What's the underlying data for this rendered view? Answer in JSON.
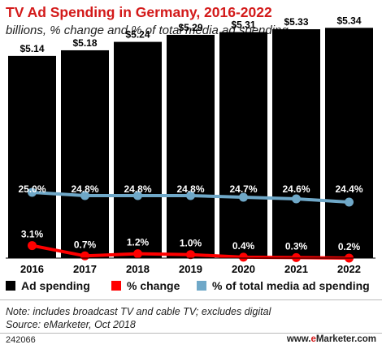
{
  "chart_data": {
    "type": "bar",
    "title": "TV Ad Spending in Germany, 2016-2022",
    "subtitle": "billions, % change and % of total media ad spending",
    "categories": [
      "2016",
      "2017",
      "2018",
      "2019",
      "2020",
      "2021",
      "2022"
    ],
    "series": [
      {
        "name": "Ad spending",
        "type": "bar",
        "color": "#000000",
        "values": [
          5.14,
          5.18,
          5.24,
          5.29,
          5.31,
          5.33,
          5.34
        ],
        "labels": [
          "$5.14",
          "$5.18",
          "$5.24",
          "$5.29",
          "$5.31",
          "$5.33",
          "$5.34"
        ]
      },
      {
        "name": "% change",
        "type": "line",
        "color": "#ff0000",
        "values": [
          3.1,
          0.7,
          1.2,
          1.0,
          0.4,
          0.3,
          0.2
        ],
        "labels": [
          "3.1%",
          "0.7%",
          "1.2%",
          "1.0%",
          "0.4%",
          "0.3%",
          "0.2%"
        ]
      },
      {
        "name": "% of total media ad spending",
        "type": "line",
        "color": "#6fa8c8",
        "values": [
          25.0,
          24.8,
          24.8,
          24.8,
          24.7,
          24.6,
          24.4
        ],
        "labels": [
          "25.0%",
          "24.8%",
          "24.8%",
          "24.8%",
          "24.7%",
          "24.6%",
          "24.4%"
        ]
      }
    ],
    "legend_position": "bottom",
    "grid": false
  },
  "footer": {
    "note_line1": "Note: includes broadcast TV and cable TV; excludes digital",
    "note_line2": "Source: eMarketer, Oct 2018",
    "id": "242066",
    "brand_prefix": "www.",
    "brand_e": "e",
    "brand_rest": "Marketer.com"
  }
}
